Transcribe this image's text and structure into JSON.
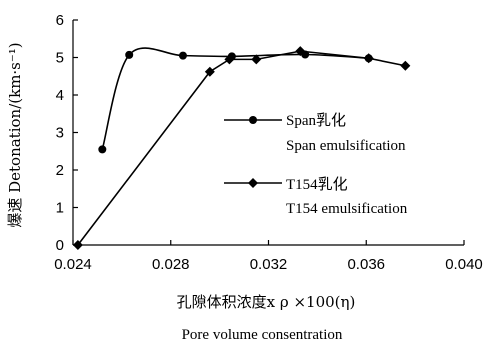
{
  "chart_data": {
    "type": "line",
    "xlabel_cn": "孔隙体积浓度x ρ ×100(η)",
    "xlabel_en": "Pore volume consentration",
    "ylabel": "爆速 Detonation/(km·s⁻¹)",
    "xlim": [
      0.024,
      0.04
    ],
    "ylim": [
      0,
      6
    ],
    "x_ticks": [
      "0.024",
      "0.028",
      "0.032",
      "0.036",
      "0.040"
    ],
    "y_ticks": [
      "0",
      "1",
      "2",
      "3",
      "4",
      "5",
      "6"
    ],
    "x_tick_values": [
      0.024,
      0.028,
      0.032,
      0.036,
      0.04
    ],
    "y_tick_values": [
      0,
      1,
      2,
      3,
      4,
      5,
      6
    ],
    "grid": false,
    "legend_position": "center-right",
    "series": [
      {
        "name": "Span乳化",
        "name_en": "Span emulsification",
        "marker": "circle",
        "smooth": true,
        "x": [
          0.0252,
          0.0263,
          0.0285,
          0.0305,
          0.0335,
          0.0361
        ],
        "y": [
          2.55,
          5.07,
          5.05,
          5.03,
          5.08,
          4.98
        ]
      },
      {
        "name": "T154乳化",
        "name_en": "T154 emulsification",
        "marker": "diamond",
        "smooth": false,
        "x": [
          0.0242,
          0.0296,
          0.0304,
          0.0315,
          0.0333,
          0.0361,
          0.0376
        ],
        "y": [
          0.0,
          4.62,
          4.95,
          4.95,
          5.17,
          4.98,
          4.78
        ]
      }
    ],
    "colors": {
      "line": "#000000",
      "marker": "#000000"
    }
  }
}
